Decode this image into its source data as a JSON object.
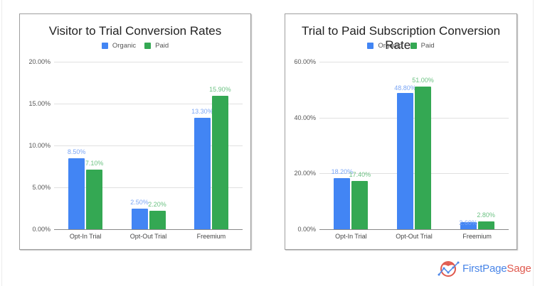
{
  "colors": {
    "organic": "#4285f4",
    "paid": "#34a853",
    "organic_label": "#7ba6f5",
    "paid_label": "#6cc283",
    "logo_blue": "#4a86e8",
    "logo_red": "#e05a4f"
  },
  "legend": {
    "organic": "Organic",
    "paid": "Paid"
  },
  "logo": {
    "part1": "FirstPage",
    "part2": "Sage"
  },
  "chart_data": [
    {
      "type": "bar",
      "title": "Visitor to Trial Conversion Rates",
      "categories": [
        "Opt-In Trial",
        "Opt-Out Trial",
        "Freemium"
      ],
      "series": [
        {
          "name": "Organic",
          "values": [
            8.5,
            2.5,
            13.3
          ],
          "labels": [
            "8.50%",
            "2.50%",
            "13.30%"
          ]
        },
        {
          "name": "Paid",
          "values": [
            7.1,
            2.2,
            15.9
          ],
          "labels": [
            "7.10%",
            "2.20%",
            "15.90%"
          ]
        }
      ],
      "yticks": [
        "0.00%",
        "5.00%",
        "10.00%",
        "15.00%",
        "20.00%"
      ],
      "ylim": [
        0,
        20
      ],
      "xlabel": "",
      "ylabel": "",
      "grid": true,
      "legend_position": "top"
    },
    {
      "type": "bar",
      "title": "Trial to Paid Subscription Conversion Rates",
      "categories": [
        "Opt-In Trial",
        "Opt-Out Trial",
        "Freemium"
      ],
      "series": [
        {
          "name": "Organic",
          "values": [
            18.2,
            48.8,
            2.6
          ],
          "labels": [
            "18.20%",
            "48.80%",
            "2.60%"
          ]
        },
        {
          "name": "Paid",
          "values": [
            17.4,
            51.0,
            2.8
          ],
          "labels": [
            "17.40%",
            "51.00%",
            "2.80%"
          ]
        }
      ],
      "yticks": [
        "0.00%",
        "20.00%",
        "40.00%",
        "60.00%"
      ],
      "ylim": [
        0,
        60
      ],
      "xlabel": "",
      "ylabel": "",
      "grid": true,
      "legend_position": "top"
    }
  ]
}
